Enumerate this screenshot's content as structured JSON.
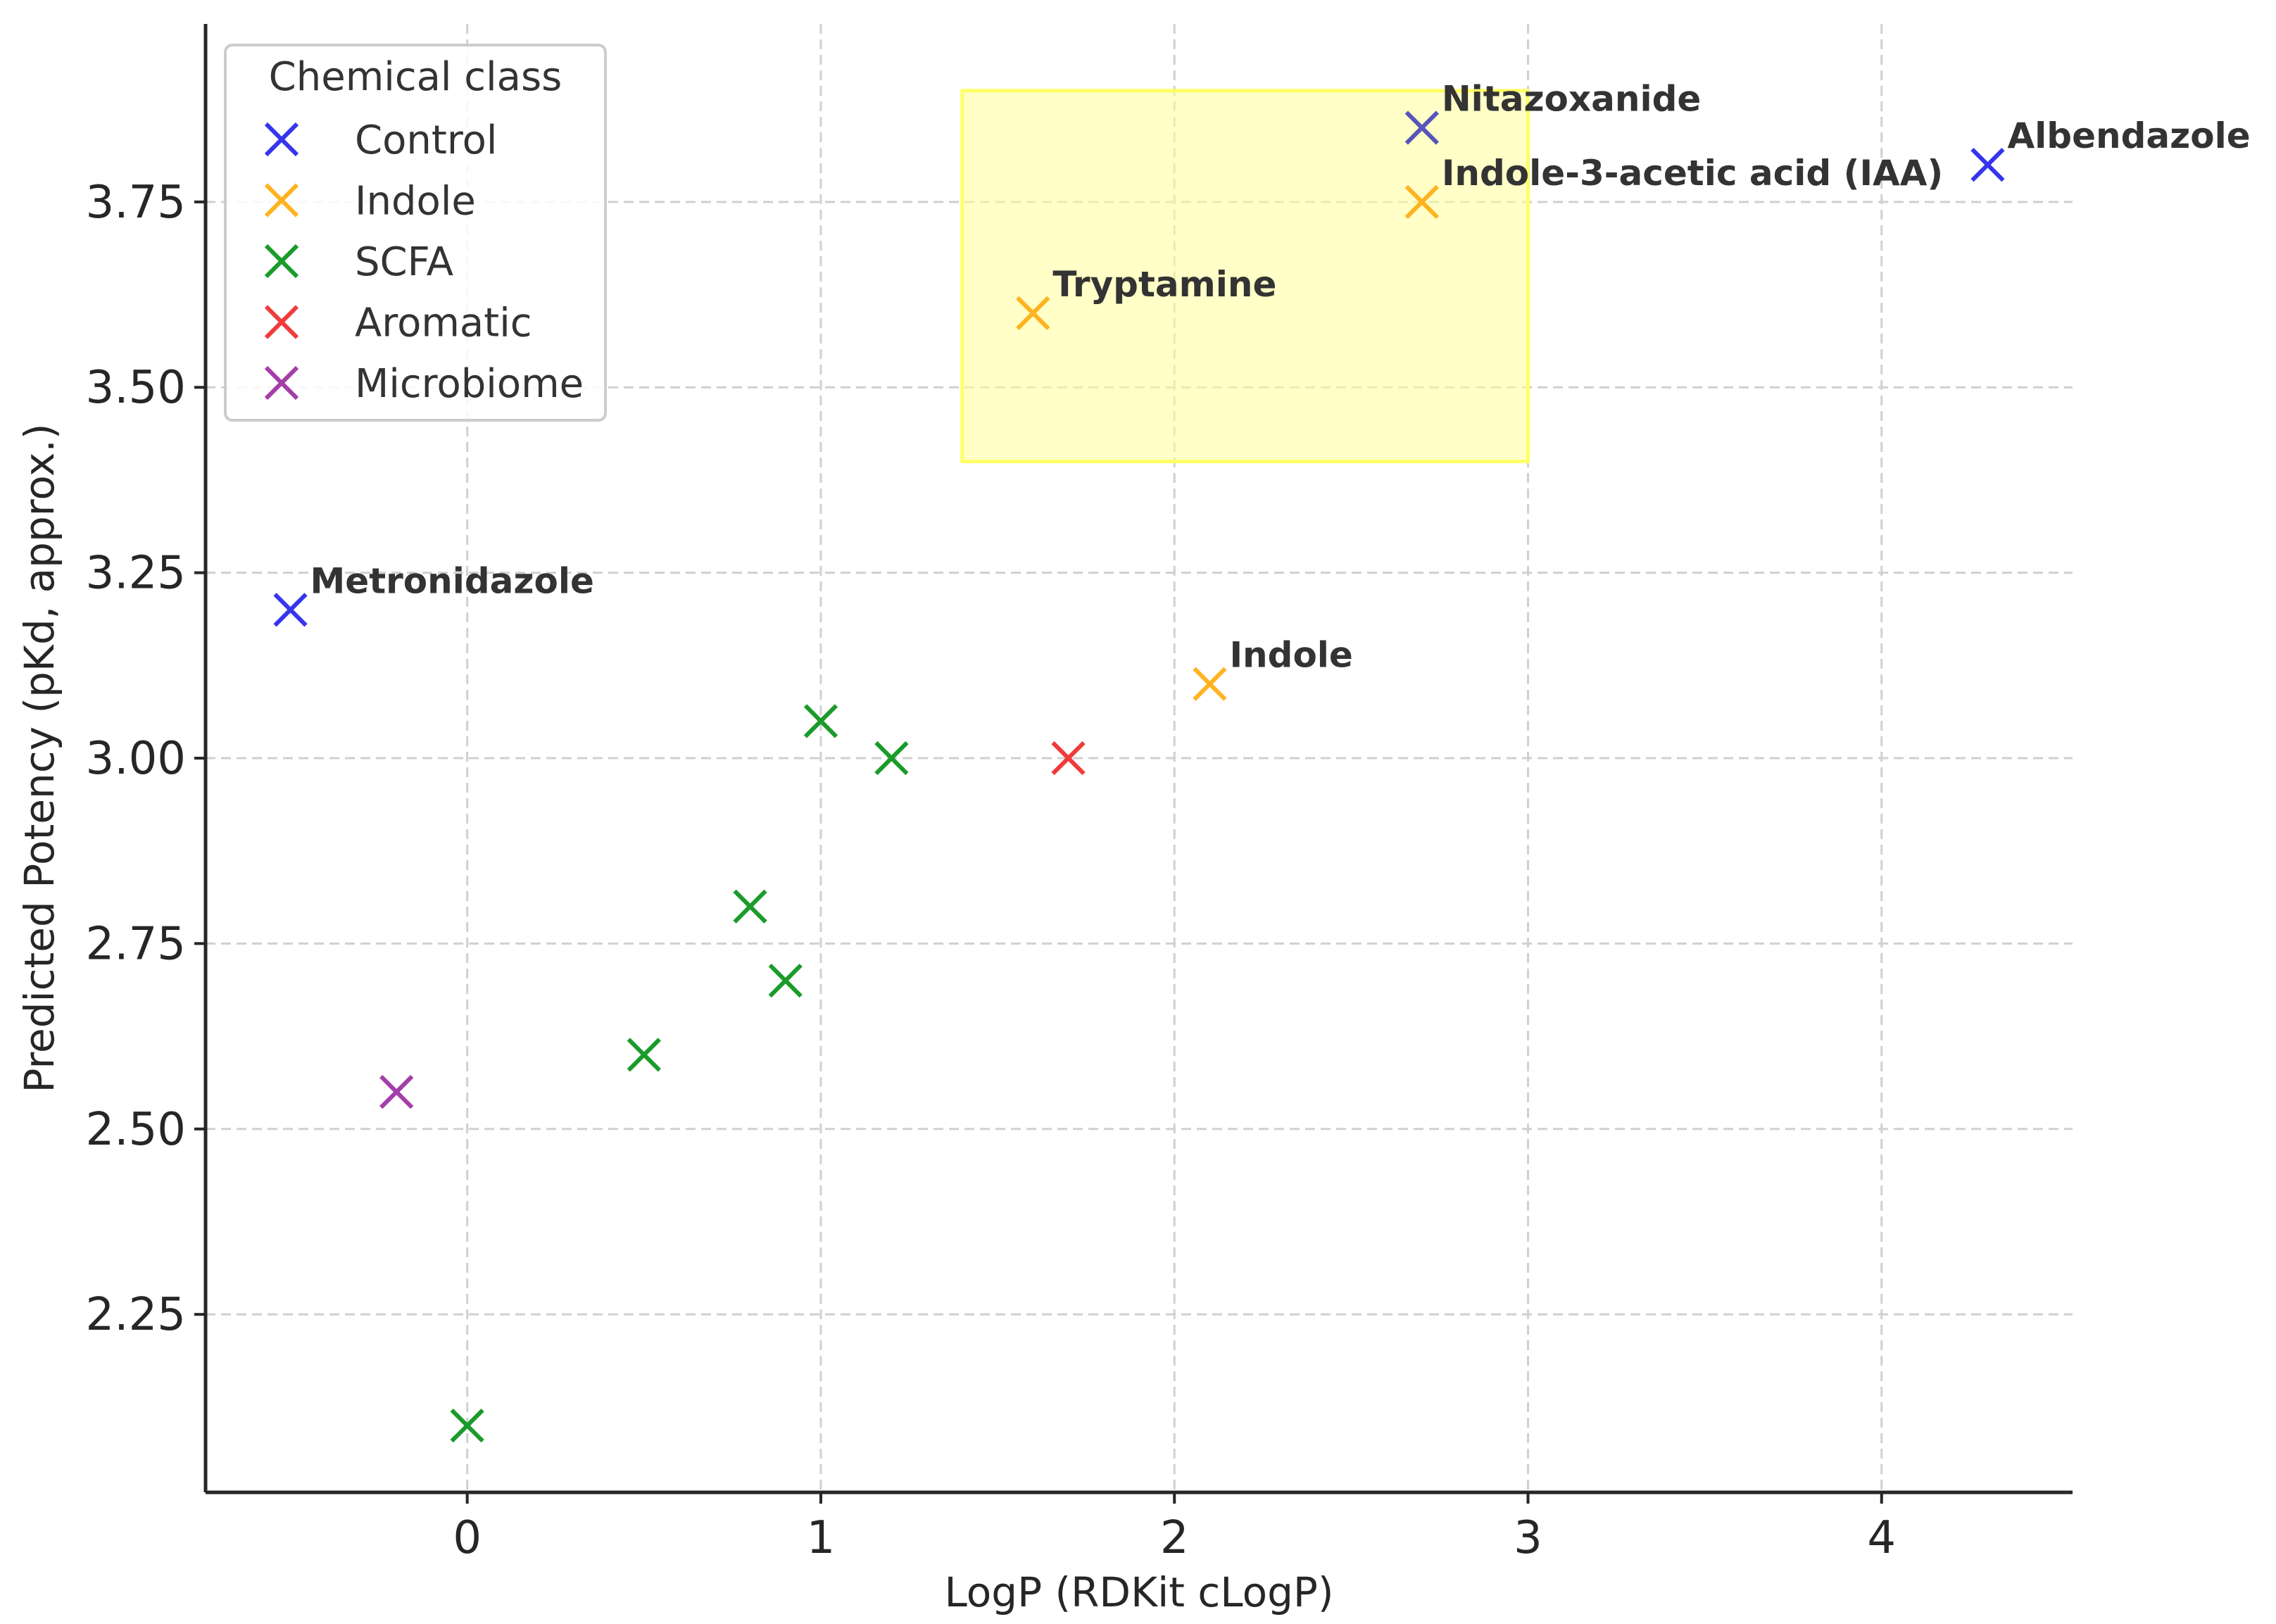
{
  "chart_data": {
    "type": "scatter",
    "xlabel": "LogP (RDKit cLogP)",
    "ylabel": "Predicted Potency (pKd, approx.)",
    "xlim": [
      -0.74,
      4.54
    ],
    "ylim": [
      2.01,
      3.99
    ],
    "x_ticks": [
      0,
      1,
      2,
      3,
      4
    ],
    "y_ticks": [
      2.25,
      2.5,
      2.75,
      3.0,
      3.25,
      3.5,
      3.75
    ],
    "x_tick_labels": [
      "0",
      "1",
      "2",
      "3",
      "4"
    ],
    "y_tick_labels": [
      "2.25",
      "2.50",
      "2.75",
      "3.00",
      "3.25",
      "3.50",
      "3.75"
    ],
    "grid": true,
    "legend": {
      "title": "Chemical class",
      "position": "top-left",
      "entries": [
        {
          "label": "Control",
          "color": "#3535ee"
        },
        {
          "label": "Indole",
          "color": "#ffb31f"
        },
        {
          "label": "SCFA",
          "color": "#1a9b2a"
        },
        {
          "label": "Aromatic",
          "color": "#ef3b3b"
        },
        {
          "label": "Microbiome",
          "color": "#a33ea8"
        }
      ]
    },
    "highlight_region": {
      "x": [
        1.4,
        3.0
      ],
      "y": [
        3.4,
        3.9
      ],
      "color": "#ffff99"
    },
    "points": [
      {
        "x": -0.5,
        "y": 3.2,
        "class": "Control",
        "label": "Metronidazole"
      },
      {
        "x": 2.7,
        "y": 3.85,
        "class": "Control",
        "label": "Nitazoxanide",
        "color": "#5555bb"
      },
      {
        "x": 4.3,
        "y": 3.8,
        "class": "Control",
        "label": "Albendazole"
      },
      {
        "x": 2.7,
        "y": 3.75,
        "class": "Indole",
        "label": "Indole-3-acetic acid (IAA)"
      },
      {
        "x": 1.6,
        "y": 3.6,
        "class": "Indole",
        "label": "Tryptamine"
      },
      {
        "x": 2.1,
        "y": 3.1,
        "class": "Indole",
        "label": "Indole"
      },
      {
        "x": 1.0,
        "y": 3.05,
        "class": "SCFA"
      },
      {
        "x": 1.2,
        "y": 3.0,
        "class": "SCFA"
      },
      {
        "x": 0.8,
        "y": 2.8,
        "class": "SCFA"
      },
      {
        "x": 0.9,
        "y": 2.7,
        "class": "SCFA"
      },
      {
        "x": 0.5,
        "y": 2.6,
        "class": "SCFA"
      },
      {
        "x": 0.0,
        "y": 2.1,
        "class": "SCFA"
      },
      {
        "x": 1.7,
        "y": 3.0,
        "class": "Aromatic"
      },
      {
        "x": -0.2,
        "y": 2.55,
        "class": "Microbiome"
      }
    ]
  }
}
